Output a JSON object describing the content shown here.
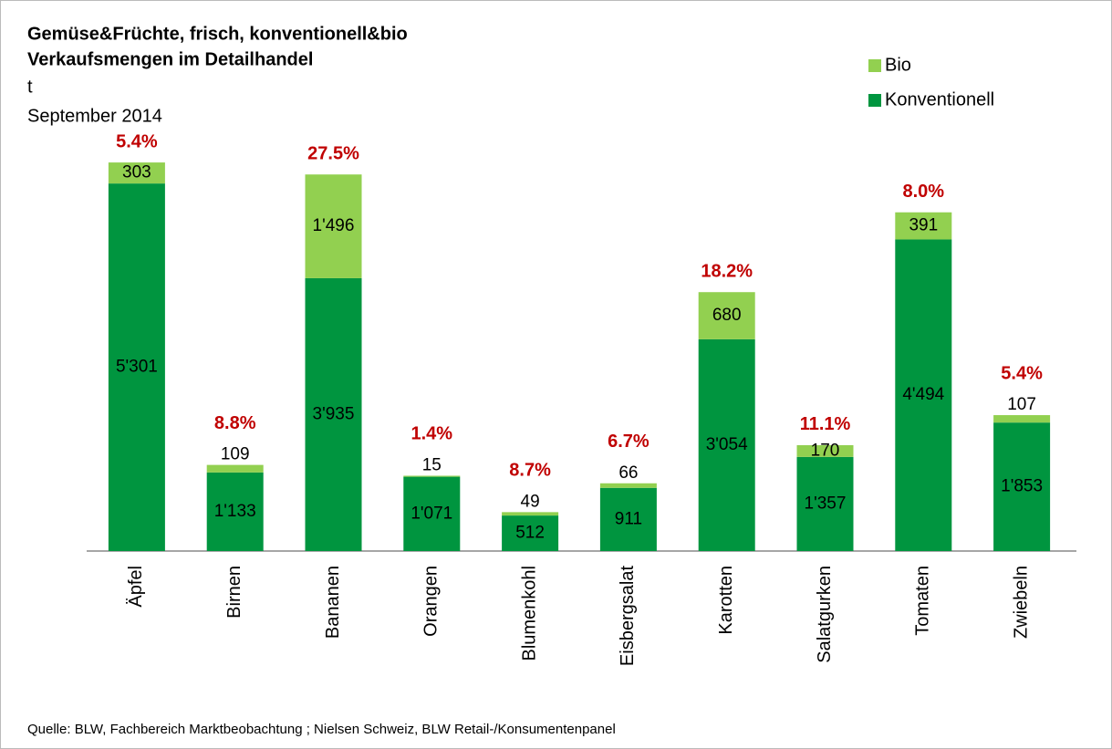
{
  "chart_data": {
    "type": "stacked_bar",
    "title": "Gemüse&Früchte, frisch, konventionell&bio",
    "subtitle": "Verkaufsmengen im Detailhandel",
    "unit": "t",
    "period": "September 2014",
    "source": "Quelle: BLW,  Fachbereich Marktbeobachtung ; Nielsen Schweiz, BLW Retail-/Konsumentenpanel",
    "categories": [
      "Äpfel",
      "Birnen",
      "Bananen",
      "Orangen",
      "Blumenkohl",
      "Eisbergsalat",
      "Karotten",
      "Salatgurken",
      "Tomaten",
      "Zwiebeln"
    ],
    "series": [
      {
        "name": "Konventionell",
        "color": "#00953f",
        "values": [
          5301,
          1133,
          3935,
          1071,
          512,
          911,
          3054,
          1357,
          4494,
          1853
        ],
        "value_labels": [
          "5'301",
          "1'133",
          "3'935",
          "1'071",
          "512",
          "911",
          "3'054",
          "1'357",
          "4'494",
          "1'853"
        ]
      },
      {
        "name": "Bio",
        "color": "#92d050",
        "values": [
          303,
          109,
          1496,
          15,
          49,
          66,
          680,
          170,
          391,
          107
        ],
        "value_labels": [
          "303",
          "109",
          "1'496",
          "15",
          "49",
          "66",
          "680",
          "170",
          "391",
          "107"
        ]
      }
    ],
    "bio_share": {
      "values": [
        5.4,
        8.8,
        27.5,
        1.4,
        8.7,
        6.7,
        18.2,
        11.1,
        8.0,
        5.4
      ],
      "value_labels": [
        "5.4%",
        "8.8%",
        "27.5%",
        "1.4%",
        "8.7%",
        "6.7%",
        "18.2%",
        "11.1%",
        "8.0%",
        "5.4%"
      ],
      "color": "#c00000"
    },
    "ylim": [
      0,
      6000
    ],
    "legend": "top-right"
  }
}
